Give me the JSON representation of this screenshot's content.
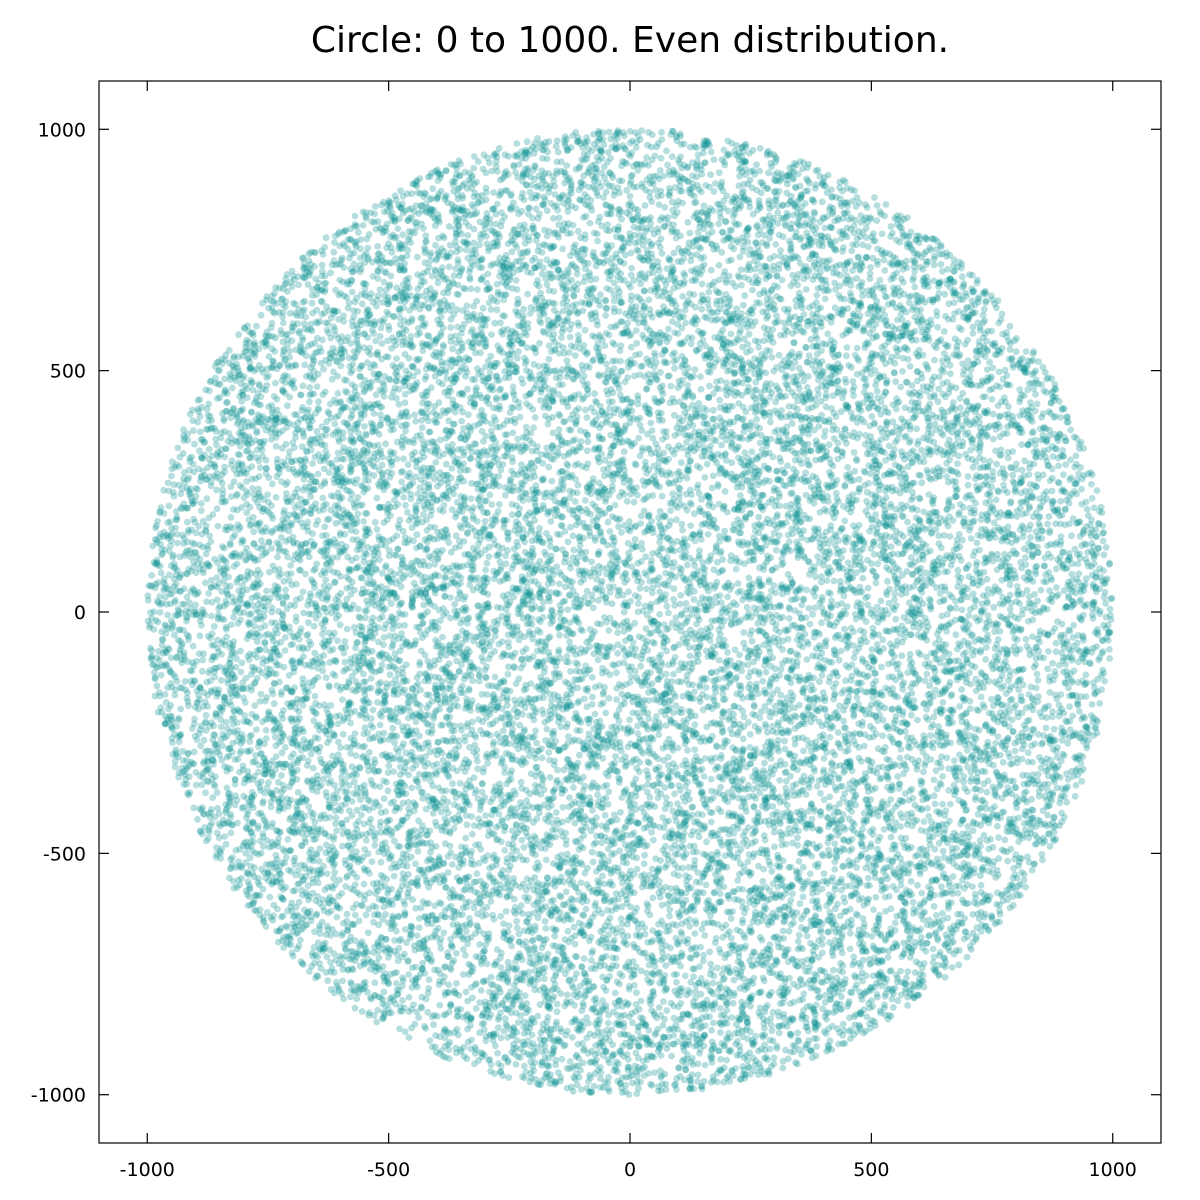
{
  "chart_data": {
    "type": "scatter",
    "title": "Circle: 0 to 1000. Even distribution.",
    "xlabel": "",
    "ylabel": "",
    "xlim": [
      -1100,
      1100
    ],
    "ylim": [
      -1100,
      1100
    ],
    "x_ticks": [
      -1000,
      -500,
      0,
      500,
      1000
    ],
    "y_ticks": [
      -1000,
      -500,
      0,
      500,
      1000
    ],
    "x_tick_labels": [
      "-1000",
      "-500",
      "0",
      "500",
      "1000"
    ],
    "y_tick_labels": [
      "-1000",
      "-500",
      "0",
      "500",
      "1000"
    ],
    "grid": false,
    "legend": "none",
    "series": [
      {
        "distribution": "uniform within circle",
        "center": [
          0,
          0
        ],
        "radius": 1000,
        "point_count": 20000,
        "color": "#0e9393",
        "opacity": 0.3
      }
    ]
  }
}
